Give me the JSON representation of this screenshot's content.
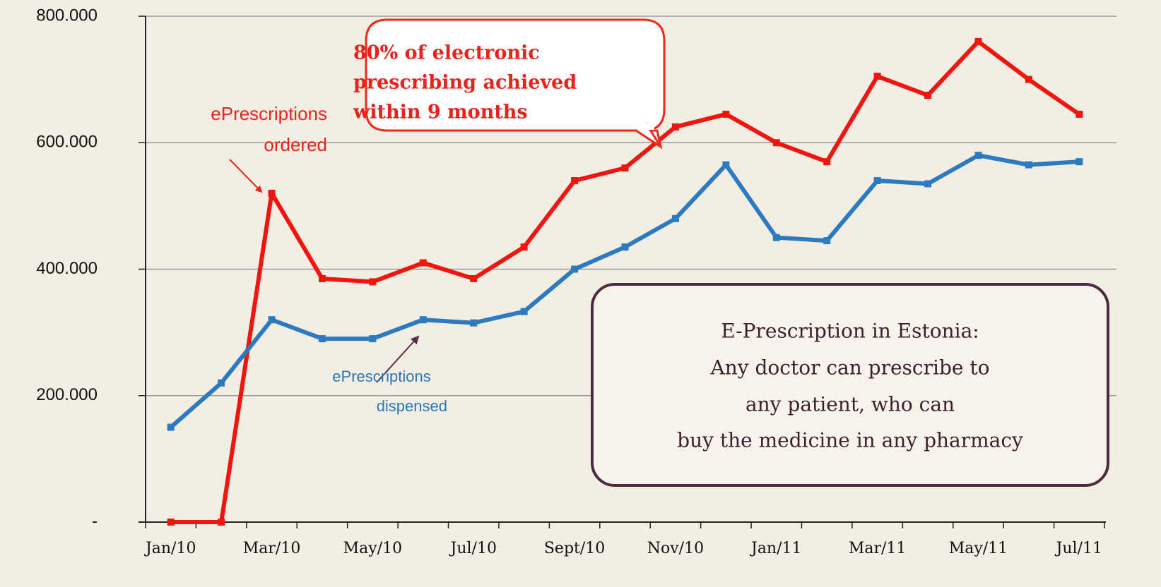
{
  "chart_data": {
    "type": "line",
    "categories": [
      "Jan/10",
      null,
      "Mar/10",
      null,
      "May/10",
      null,
      "Jul/10",
      null,
      "Sept/10",
      null,
      "Nov/10",
      null,
      "Jan/11",
      null,
      "Mar/11",
      null,
      "May/11",
      null,
      "Jul/11"
    ],
    "series": [
      {
        "color": "#f0150f",
        "values": [
          0,
          0,
          520000,
          385000,
          380000,
          410000,
          385000,
          435000,
          540000,
          560000,
          625000,
          645000,
          600000,
          570000,
          705000,
          675000,
          760000,
          700000,
          645000
        ]
      },
      {
        "color": "#2c7bc0",
        "values": [
          150000,
          220000,
          320000,
          290000,
          290000,
          320000,
          315000,
          333000,
          400000,
          435000,
          480000,
          565000,
          450000,
          445000,
          540000,
          535000,
          580000,
          565000,
          570000
        ]
      }
    ],
    "ylim": [
      0,
      800000
    ],
    "yticks": [
      {
        "value": 0,
        "label": "-"
      },
      {
        "value": 200000,
        "label": "200.000"
      },
      {
        "value": 400000,
        "label": "400.000"
      },
      {
        "value": 600000,
        "label": "600.000"
      },
      {
        "value": 800000,
        "label": "800.000"
      }
    ],
    "grid": true,
    "annotations": [
      {
        "lines": [
          "ePrescriptions",
          "ordered"
        ]
      },
      {
        "lines": [
          "ePrescriptions",
          "dispensed"
        ]
      },
      {
        "lines": [
          "80% of electronic",
          "prescribing achieved",
          "within 9 months"
        ]
      },
      {
        "lines": [
          "E-Prescription in Estonia:",
          "Any doctor can prescribe to",
          "any patient, who can",
          "buy the medicine in any pharmacy"
        ]
      }
    ]
  }
}
